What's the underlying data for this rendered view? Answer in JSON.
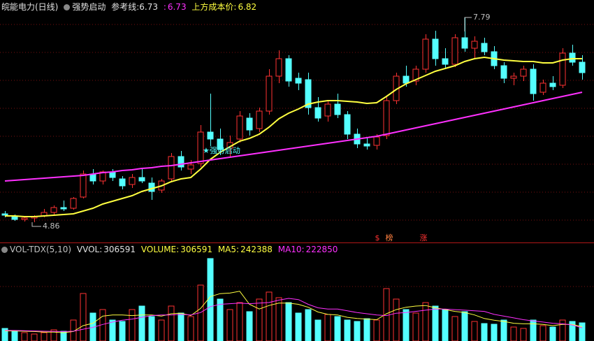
{
  "chart_data": {
    "type": "candlestick",
    "title": "皖能电力(日线)",
    "indicator": "强势启动",
    "ref_label": "参考线:",
    "ref_value": 6.73,
    "ref2_label": ":",
    "ref2_value": 6.73,
    "cost_label": "上方成本价:",
    "cost_value": 6.82,
    "up_color": "#ff3232",
    "down_color": "#54ffff",
    "open": [
      4.98,
      4.94,
      4.9,
      4.92,
      4.95,
      5.0,
      5.07,
      5.06,
      5.22,
      5.55,
      5.45,
      5.58,
      5.48,
      5.4,
      5.5,
      5.42,
      5.32,
      5.48,
      5.8,
      5.62,
      5.7,
      6.15,
      6.05,
      5.92,
      6.05,
      6.35,
      6.2,
      6.45,
      6.95,
      7.2,
      6.92,
      6.9,
      6.5,
      6.38,
      6.55,
      6.4,
      6.12,
      5.98,
      5.96,
      6.1,
      6.6,
      6.95,
      6.88,
      7.05,
      7.48,
      7.2,
      7.12,
      7.5,
      7.35,
      7.42,
      7.3,
      7.1,
      6.92,
      6.95,
      7.05,
      6.72,
      6.85,
      6.82,
      7.28,
      7.15
    ],
    "high": [
      5.02,
      4.97,
      4.95,
      4.96,
      5.05,
      5.1,
      5.17,
      5.22,
      5.6,
      5.62,
      5.6,
      5.62,
      5.52,
      5.55,
      5.62,
      5.5,
      5.48,
      5.85,
      5.88,
      5.75,
      6.25,
      6.7,
      6.2,
      6.1,
      6.45,
      6.42,
      6.5,
      7.05,
      7.32,
      7.25,
      7.0,
      7.0,
      6.65,
      6.6,
      6.7,
      6.45,
      6.2,
      6.08,
      6.12,
      6.65,
      7.0,
      7.1,
      7.1,
      7.55,
      7.6,
      7.35,
      7.55,
      7.79,
      7.52,
      7.5,
      7.38,
      7.15,
      7.0,
      7.1,
      7.12,
      6.9,
      6.95,
      7.35,
      7.4,
      7.25
    ],
    "low": [
      4.93,
      4.88,
      4.87,
      4.86,
      4.93,
      4.97,
      5.02,
      5.04,
      5.2,
      5.4,
      5.4,
      5.45,
      5.33,
      5.35,
      5.42,
      5.18,
      5.28,
      5.45,
      5.6,
      5.55,
      5.65,
      5.95,
      5.82,
      5.8,
      6.0,
      6.1,
      6.15,
      6.4,
      6.85,
      6.8,
      6.75,
      6.4,
      6.3,
      6.3,
      6.35,
      6.05,
      5.92,
      5.9,
      5.9,
      6.05,
      6.55,
      6.8,
      6.82,
      7.0,
      7.1,
      7.05,
      7.08,
      7.3,
      7.2,
      7.25,
      7.05,
      6.85,
      6.82,
      6.88,
      6.6,
      6.68,
      6.75,
      6.78,
      7.1,
      6.9
    ],
    "close": [
      4.96,
      4.9,
      4.92,
      4.94,
      5.0,
      5.07,
      5.05,
      5.2,
      5.55,
      5.45,
      5.58,
      5.5,
      5.38,
      5.5,
      5.45,
      5.3,
      5.45,
      5.8,
      5.65,
      5.68,
      6.15,
      6.05,
      5.9,
      6.0,
      6.38,
      6.18,
      6.45,
      6.95,
      7.2,
      6.88,
      6.85,
      6.5,
      6.35,
      6.55,
      6.4,
      6.12,
      5.98,
      5.95,
      6.08,
      6.6,
      6.95,
      6.85,
      7.05,
      7.48,
      7.2,
      7.12,
      7.5,
      7.35,
      7.45,
      7.3,
      7.1,
      6.92,
      6.95,
      7.05,
      6.7,
      6.85,
      6.8,
      7.28,
      7.15,
      7.0
    ],
    "ma_lines": [
      {
        "color": "#ffff40",
        "values": [
          4.95,
          4.95,
          4.94,
          4.94,
          4.95,
          4.96,
          4.97,
          4.98,
          5.02,
          5.06,
          5.12,
          5.16,
          5.2,
          5.24,
          5.3,
          5.34,
          5.38,
          5.44,
          5.48,
          5.5,
          5.62,
          5.76,
          5.86,
          5.94,
          6.02,
          6.06,
          6.12,
          6.22,
          6.34,
          6.42,
          6.48,
          6.55,
          6.58,
          6.6,
          6.6,
          6.59,
          6.58,
          6.56,
          6.57,
          6.66,
          6.76,
          6.84,
          6.9,
          6.96,
          7.02,
          7.06,
          7.1,
          7.16,
          7.2,
          7.22,
          7.2,
          7.18,
          7.17,
          7.16,
          7.16,
          7.14,
          7.14,
          7.18,
          7.2,
          7.2
        ]
      },
      {
        "color": "#ff30ff",
        "values": [
          5.45,
          5.46,
          5.47,
          5.48,
          5.49,
          5.5,
          5.51,
          5.52,
          5.53,
          5.55,
          5.57,
          5.58,
          5.6,
          5.61,
          5.63,
          5.64,
          5.66,
          5.67,
          5.69,
          5.71,
          5.73,
          5.75,
          5.77,
          5.79,
          5.81,
          5.83,
          5.85,
          5.87,
          5.89,
          5.91,
          5.93,
          5.95,
          5.97,
          5.99,
          6.01,
          6.03,
          6.05,
          6.07,
          6.09,
          6.12,
          6.15,
          6.18,
          6.21,
          6.24,
          6.27,
          6.3,
          6.33,
          6.36,
          6.39,
          6.42,
          6.45,
          6.48,
          6.51,
          6.54,
          6.57,
          6.6,
          6.63,
          6.66,
          6.69,
          6.72
        ]
      }
    ],
    "annotation": "★强势启动",
    "signals": [
      "$",
      "榜",
      "涨"
    ],
    "volume": {
      "title": "VOL-TDX(5,10)",
      "vvol_label": "VVOL:",
      "vvol_value": 306591,
      "volume_label": "VOLUME:",
      "volume_value": 306591,
      "ma5_label": "MA5:",
      "ma5_value": 242388,
      "ma10_label": "MA10:",
      "ma10_value": 222850,
      "values": [
        212400,
        177000,
        141600,
        118000,
        141600,
        188800,
        165200,
        354000,
        802400,
        472000,
        531000,
        354000,
        330400,
        531000,
        590000,
        413000,
        354000,
        590000,
        472000,
        413000,
        944000,
        1392400,
        708000,
        531000,
        649000,
        495600,
        708000,
        826000,
        731600,
        649000,
        472000,
        531000,
        354000,
        448400,
        413000,
        354000,
        330400,
        377600,
        354000,
        885000,
        708000,
        531000,
        472000,
        649000,
        590000,
        531000,
        413000,
        495600,
        330400,
        295000,
        283200,
        354000,
        236000,
        212400,
        354000,
        259600,
        236000,
        354000,
        330400,
        306591
      ],
      "ma_lines": [
        {
          "color": "#ffff40",
          "values": [
            170000,
            170000,
            165000,
            160000,
            150000,
            150000,
            140000,
            160000,
            260000,
            300000,
            420000,
            440000,
            440000,
            430000,
            440000,
            440000,
            420000,
            460000,
            470000,
            430000,
            550000,
            750000,
            800000,
            810000,
            840000,
            620000,
            540000,
            600000,
            640000,
            640000,
            620000,
            570000,
            490000,
            450000,
            440000,
            400000,
            380000,
            370000,
            360000,
            460000,
            530000,
            570000,
            590000,
            600000,
            560000,
            530000,
            500000,
            480000,
            440000,
            380000,
            350000,
            330000,
            300000,
            290000,
            290000,
            280000,
            260000,
            280000,
            280000,
            242388
          ]
        },
        {
          "color": "#ff30ff",
          "values": [
            180000,
            178000,
            175000,
            170000,
            165000,
            162000,
            160000,
            165000,
            200000,
            230000,
            280000,
            320000,
            350000,
            370000,
            400000,
            430000,
            440000,
            440000,
            450000,
            440000,
            480000,
            580000,
            620000,
            630000,
            640000,
            630000,
            640000,
            650000,
            690000,
            720000,
            700000,
            620000,
            560000,
            540000,
            540000,
            510000,
            480000,
            460000,
            440000,
            430000,
            470000,
            480000,
            500000,
            520000,
            540000,
            540000,
            530000,
            520000,
            510000,
            500000,
            450000,
            420000,
            390000,
            360000,
            340000,
            320000,
            300000,
            290000,
            270000,
            222850
          ]
        }
      ]
    }
  }
}
